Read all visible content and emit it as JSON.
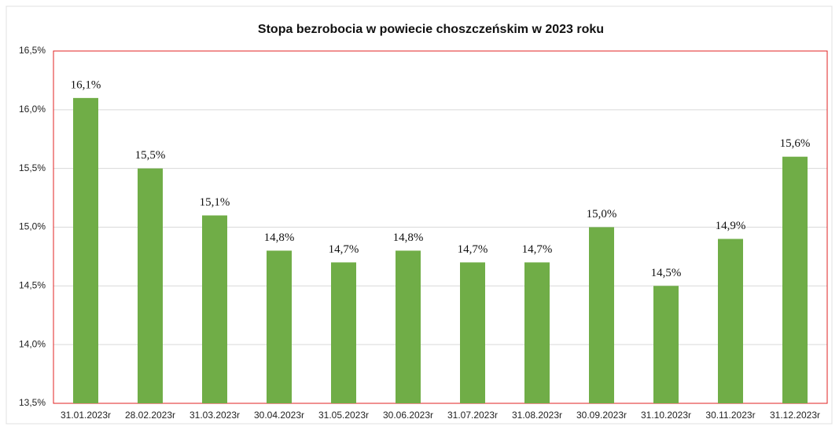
{
  "chart_data": {
    "type": "bar",
    "title": "Stopa bezrobocia w powiecie choszczeńskim w 2023 roku",
    "categories": [
      "31.01.2023r",
      "28.02.2023r",
      "31.03.2023r",
      "30.04.2023r",
      "31.05.2023r",
      "30.06.2023r",
      "31.07.2023r",
      "31.08.2023r",
      "30.09.2023r",
      "31.10.2023r",
      "30.11.2023r",
      "31.12.2023r"
    ],
    "values": [
      16.1,
      15.5,
      15.1,
      14.8,
      14.7,
      14.8,
      14.7,
      14.7,
      15.0,
      14.5,
      14.9,
      15.6
    ],
    "value_labels": [
      "16,1%",
      "15,5%",
      "15,1%",
      "14,8%",
      "14,7%",
      "14,8%",
      "14,7%",
      "14,7%",
      "15,0%",
      "14,5%",
      "14,9%",
      "15,6%"
    ],
    "color": "#70ad47",
    "ylim": [
      13.5,
      16.5
    ],
    "yticks": [
      {
        "value": 13.5,
        "label": "13,5%"
      },
      {
        "value": 14.0,
        "label": "14,0%"
      },
      {
        "value": 14.5,
        "label": "14,5%"
      },
      {
        "value": 15.0,
        "label": "15,0%"
      },
      {
        "value": 15.5,
        "label": "15,5%"
      },
      {
        "value": 16.0,
        "label": "16,0%"
      },
      {
        "value": 16.5,
        "label": "16,5%"
      }
    ],
    "grid": true
  }
}
